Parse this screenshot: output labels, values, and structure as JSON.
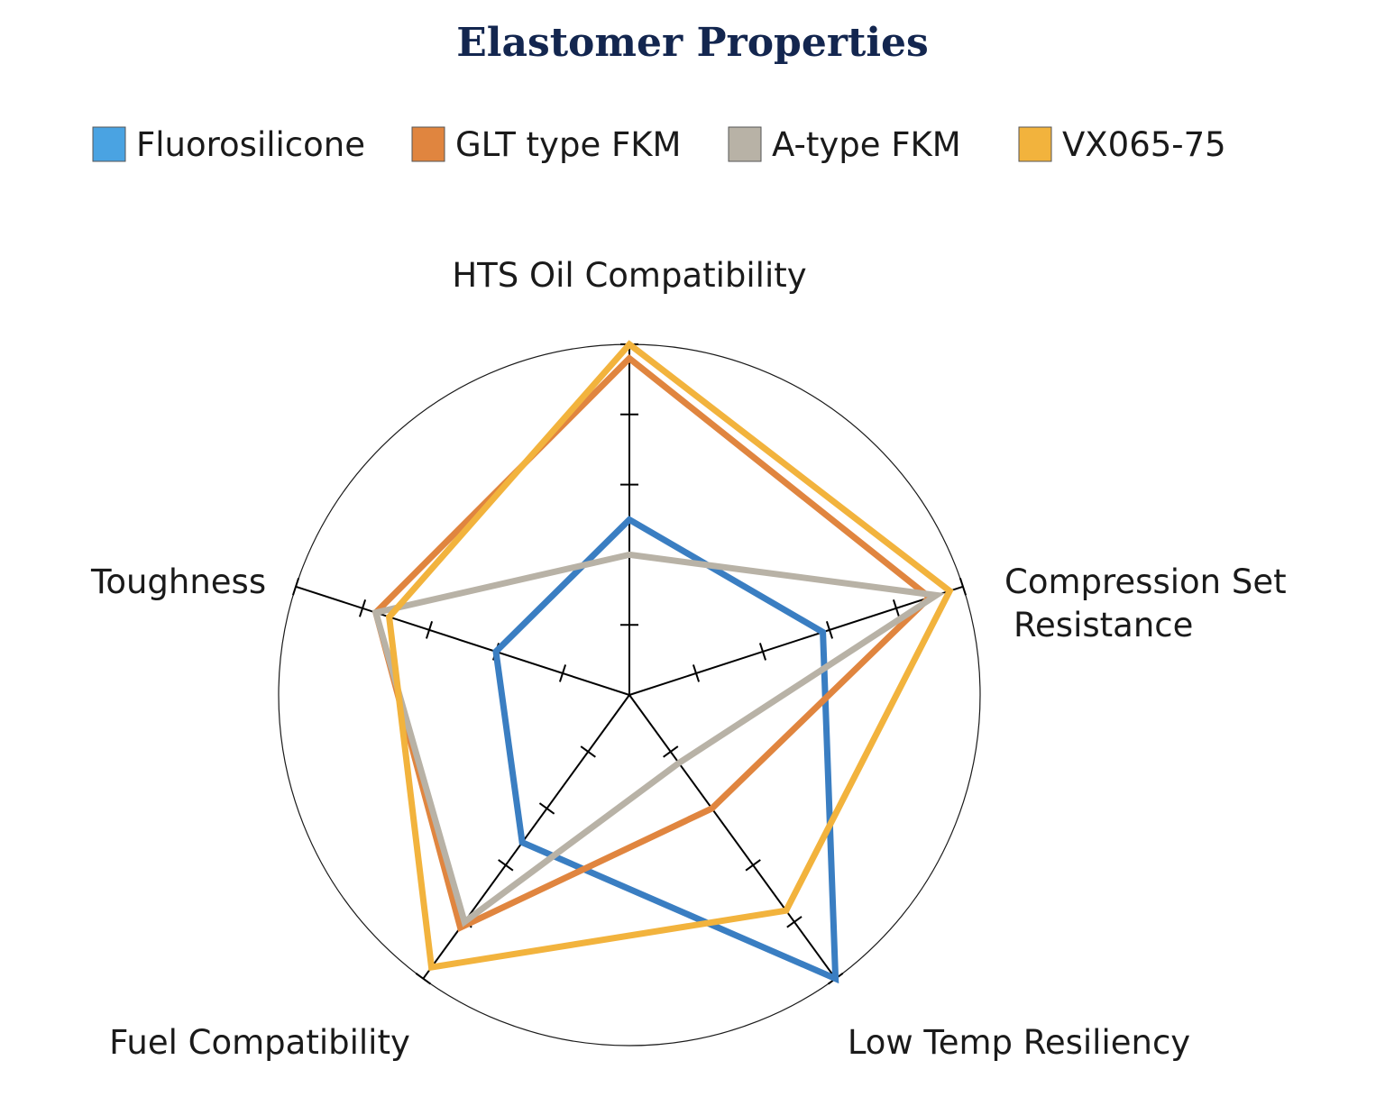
{
  "chart_data": {
    "type": "radar",
    "title": "Elastomer Properties",
    "axes": [
      "HTS Oil Compatibility",
      "Compression Set\nResistance",
      "Low Temp Resiliency",
      "Fuel Compatibility",
      "Toughness"
    ],
    "scale": {
      "min": 0,
      "max": 5,
      "ticks": [
        1,
        2,
        3,
        4,
        5
      ]
    },
    "series": [
      {
        "name": "Fluorosilicone",
        "color": "#3a7ec2",
        "legend_color": "#4aa3e2",
        "values": [
          2.5,
          2.9,
          5.0,
          2.6,
          2.0
        ]
      },
      {
        "name": "GLT type FKM",
        "color": "#e0853f",
        "legend_color": "#e0853f",
        "values": [
          4.8,
          4.5,
          2.0,
          4.1,
          3.8
        ]
      },
      {
        "name": "A-type FKM",
        "color": "#b8b2a6",
        "legend_color": "#b8b2a6",
        "values": [
          2.0,
          4.6,
          1.2,
          4.0,
          3.8
        ]
      },
      {
        "name": "VX065-75",
        "color": "#f2b33d",
        "legend_color": "#f2b33d",
        "values": [
          5.0,
          4.8,
          3.8,
          4.8,
          3.6
        ]
      }
    ],
    "legend_position": "top",
    "grid": false
  }
}
